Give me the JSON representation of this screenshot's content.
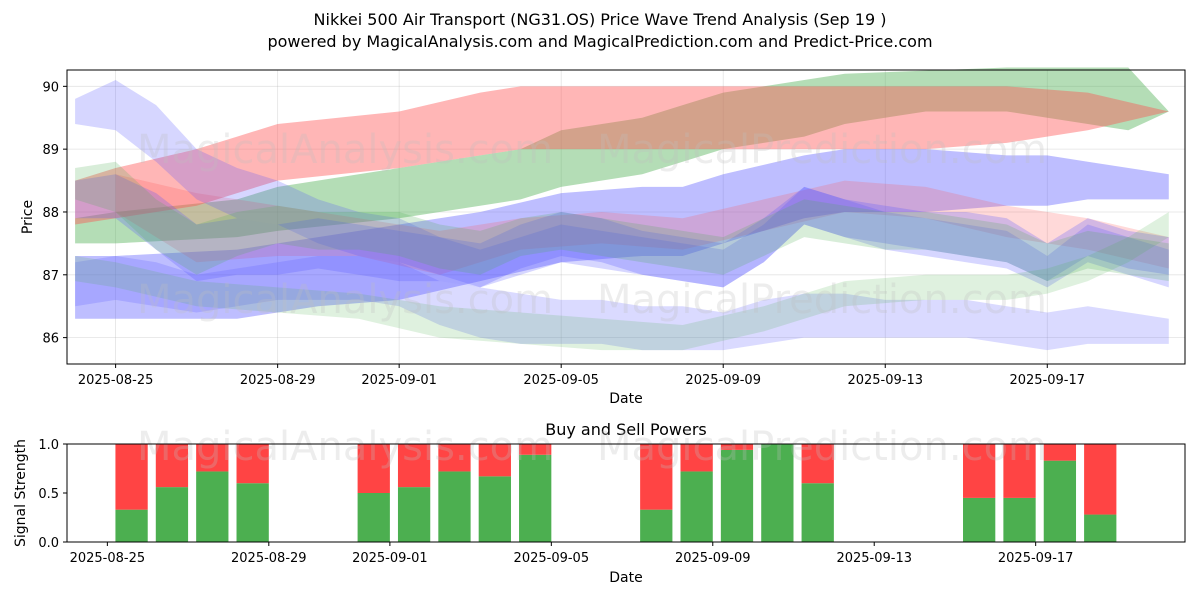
{
  "chart_title_line1": "Nikkei 500 Air Transport (NG31.OS) Price Wave Trend Analysis (Sep 19 )",
  "chart_title_line2": "powered by MagicalAnalysis.com and MagicalPrediction.com and Predict-Price.com",
  "watermarks": [
    "MagicalAnalysis.com",
    "MagicalPrediction.com"
  ],
  "colors": {
    "green": "#4caf50",
    "red": "#ff4444",
    "blue": "#5555ff",
    "band_green": "#2ca02c",
    "band_red": "#ff5050"
  },
  "chart_data": [
    {
      "type": "area",
      "title": "",
      "xlabel": "Date",
      "ylabel": "Price",
      "ylim": [
        85.58,
        90.26
      ],
      "xlim": [
        -1.2,
        26.4
      ],
      "x_ticks": [
        {
          "x": 0,
          "label": "2025-08-25"
        },
        {
          "x": 4,
          "label": "2025-08-29"
        },
        {
          "x": 7,
          "label": "2025-09-01"
        },
        {
          "x": 11,
          "label": "2025-09-05"
        },
        {
          "x": 15,
          "label": "2025-09-09"
        },
        {
          "x": 19,
          "label": "2025-09-13"
        },
        {
          "x": 23,
          "label": "2025-09-17"
        }
      ],
      "y_ticks": [
        86,
        87,
        88,
        89,
        90
      ],
      "grid": true,
      "series": [
        {
          "name": "green-upper",
          "color": "green",
          "opacity": 0.42,
          "x": [
            -1,
            0,
            3,
            4,
            7,
            9,
            10,
            11,
            13,
            14,
            15,
            17,
            18,
            20,
            22,
            23,
            24,
            25,
            26
          ],
          "upper": [
            87.9,
            88.0,
            88.2,
            88.4,
            88.7,
            88.9,
            89.0,
            89.3,
            89.5,
            89.7,
            89.9,
            90.1,
            90.2,
            90.25,
            90.3,
            90.3,
            90.3,
            90.3,
            89.6
          ],
          "lower": [
            87.5,
            87.5,
            87.6,
            87.7,
            87.9,
            88.1,
            88.2,
            88.4,
            88.6,
            88.8,
            89.0,
            89.2,
            89.4,
            89.6,
            89.6,
            89.5,
            89.4,
            89.3,
            89.6
          ]
        },
        {
          "name": "red-upper",
          "color": "band_red",
          "opacity": 0.42,
          "x": [
            -1,
            0,
            2,
            3,
            4,
            7,
            9,
            10,
            11,
            14,
            16,
            18,
            20,
            22,
            24,
            26
          ],
          "upper": [
            88.5,
            88.7,
            89.0,
            89.2,
            89.4,
            89.6,
            89.9,
            90.0,
            90.0,
            90.0,
            90.0,
            90.0,
            90.0,
            90.0,
            89.9,
            89.6
          ],
          "lower": [
            87.8,
            87.9,
            88.1,
            88.3,
            88.5,
            88.7,
            88.9,
            89.0,
            89.0,
            89.0,
            89.0,
            89.0,
            89.0,
            89.1,
            89.3,
            89.6
          ]
        },
        {
          "name": "blue-upper",
          "color": "blue",
          "opacity": 0.38,
          "x": [
            -1,
            0,
            3,
            5,
            7,
            9,
            11,
            13,
            14,
            15,
            17,
            18,
            20,
            22,
            23,
            24,
            26
          ],
          "upper": [
            87.3,
            87.3,
            87.4,
            87.6,
            87.8,
            88.0,
            88.3,
            88.4,
            88.4,
            88.6,
            88.9,
            89.0,
            89.0,
            88.9,
            88.9,
            88.8,
            88.6
          ],
          "lower": [
            86.3,
            86.3,
            86.3,
            86.5,
            86.6,
            86.9,
            87.2,
            87.3,
            87.3,
            87.5,
            87.9,
            88.0,
            88.0,
            88.1,
            88.1,
            88.2,
            88.2
          ]
        },
        {
          "name": "magenta-mid",
          "color": "band_red",
          "opacity": 0.22,
          "x": [
            0,
            2,
            4,
            6,
            8,
            10,
            12,
            14,
            16,
            18,
            20,
            22,
            24,
            26
          ],
          "upper": [
            88.6,
            88.3,
            88.1,
            87.9,
            87.7,
            87.9,
            88.0,
            87.9,
            88.2,
            88.5,
            88.4,
            88.1,
            87.9,
            87.6
          ],
          "lower": [
            88.0,
            87.2,
            87.3,
            87.3,
            87.0,
            87.4,
            87.5,
            87.4,
            87.7,
            88.0,
            87.9,
            87.6,
            87.4,
            87.1
          ]
        },
        {
          "name": "blue-wave-a",
          "color": "blue",
          "opacity": 0.26,
          "x": [
            -1,
            0,
            1,
            2,
            3,
            4,
            5,
            6,
            7,
            8,
            9,
            10,
            11,
            12,
            13,
            14,
            15,
            16,
            17,
            18,
            19,
            20,
            21,
            22,
            23,
            24,
            25,
            26
          ],
          "upper": [
            88.5,
            88.6,
            88.3,
            87.8,
            87.9,
            87.8,
            87.9,
            87.8,
            87.7,
            87.6,
            87.5,
            87.8,
            88.0,
            87.9,
            87.7,
            87.6,
            87.5,
            87.9,
            88.4,
            88.2,
            88.1,
            88.0,
            88.0,
            87.9,
            87.5,
            87.9,
            87.7,
            87.6
          ],
          "lower": [
            87.9,
            87.9,
            87.4,
            86.9,
            87.0,
            87.0,
            87.1,
            87.0,
            86.9,
            86.9,
            86.8,
            87.1,
            87.3,
            87.2,
            87.0,
            86.9,
            86.8,
            87.2,
            87.8,
            87.6,
            87.5,
            87.4,
            87.3,
            87.2,
            86.9,
            87.3,
            87.1,
            87.0
          ]
        },
        {
          "name": "blue-wave-b",
          "color": "blue",
          "opacity": 0.24,
          "x": [
            -1,
            0,
            1,
            2,
            3,
            4,
            5,
            6,
            7,
            8,
            9,
            10,
            11,
            12,
            13,
            14,
            15,
            16,
            17,
            18,
            19,
            20,
            21,
            22,
            23,
            24,
            25,
            26
          ],
          "upper": [
            89.8,
            90.1,
            89.7,
            89.0,
            88.7,
            88.5,
            88.2,
            88.0,
            87.9,
            87.6,
            87.4,
            87.6,
            87.8,
            87.7,
            87.6,
            87.5,
            87.4,
            87.8,
            88.4,
            88.2,
            88.0,
            87.9,
            87.8,
            87.7,
            87.3,
            87.8,
            87.6,
            87.4
          ],
          "lower": [
            89.4,
            89.3,
            88.8,
            88.2,
            87.9,
            87.8,
            87.5,
            87.3,
            87.2,
            87.0,
            86.8,
            87.0,
            87.2,
            87.1,
            87.0,
            86.9,
            86.8,
            87.2,
            87.8,
            87.6,
            87.4,
            87.3,
            87.2,
            87.1,
            86.8,
            87.2,
            87.0,
            86.8
          ]
        },
        {
          "name": "teal-wave",
          "color": "green",
          "opacity": 0.22,
          "x": [
            -1,
            0,
            1,
            2,
            3,
            4,
            5,
            6,
            7,
            8,
            9,
            10,
            11,
            12,
            13,
            14,
            15,
            16,
            17,
            18,
            19,
            20,
            21,
            22,
            23,
            24,
            25,
            26
          ],
          "upper": [
            88.7,
            88.8,
            88.2,
            87.8,
            88.0,
            88.1,
            88.0,
            88.0,
            88.0,
            87.8,
            87.7,
            87.9,
            88.0,
            87.9,
            87.8,
            87.7,
            87.6,
            87.9,
            88.2,
            88.1,
            88.0,
            88.0,
            87.9,
            87.8,
            87.5,
            87.7,
            87.6,
            87.5
          ],
          "lower": [
            88.2,
            88.0,
            87.4,
            87.0,
            87.3,
            87.5,
            87.4,
            87.4,
            87.3,
            87.1,
            87.0,
            87.3,
            87.4,
            87.3,
            87.2,
            87.1,
            87.0,
            87.3,
            87.6,
            87.5,
            87.4,
            87.4,
            87.3,
            87.2,
            86.9,
            87.1,
            87.0,
            86.9
          ]
        },
        {
          "name": "blue-lower-a",
          "color": "blue",
          "opacity": 0.22,
          "x": [
            -1,
            0,
            1,
            2,
            3,
            4,
            5,
            6,
            7,
            8,
            9,
            10,
            11,
            12,
            13,
            14,
            15,
            16,
            17,
            18,
            19,
            20,
            21,
            22,
            23,
            24,
            25,
            26
          ],
          "upper": [
            87.2,
            87.3,
            87.2,
            87.0,
            87.1,
            87.2,
            87.3,
            87.3,
            87.2,
            86.9,
            86.8,
            86.7,
            86.6,
            86.6,
            86.5,
            86.5,
            86.4,
            86.6,
            86.7,
            86.7,
            86.6,
            86.6,
            86.6,
            86.5,
            86.4,
            86.5,
            86.4,
            86.3
          ],
          "lower": [
            86.5,
            86.6,
            86.5,
            86.4,
            86.5,
            86.6,
            86.6,
            86.6,
            86.5,
            86.2,
            86.0,
            85.9,
            85.9,
            85.9,
            85.8,
            85.8,
            85.8,
            85.9,
            86.0,
            86.0,
            86.0,
            86.0,
            86.0,
            85.9,
            85.8,
            85.9,
            85.9,
            85.9
          ]
        },
        {
          "name": "green-lower",
          "color": "green",
          "opacity": 0.18,
          "x": [
            -1,
            0,
            2,
            4,
            6,
            8,
            10,
            12,
            14,
            16,
            17,
            18,
            20,
            22,
            23,
            24,
            25,
            26
          ],
          "upper": [
            87.3,
            87.2,
            86.9,
            86.8,
            86.7,
            86.5,
            86.4,
            86.3,
            86.2,
            86.5,
            86.7,
            86.9,
            87.0,
            87.0,
            87.1,
            87.3,
            87.6,
            88.0
          ],
          "lower": [
            86.9,
            86.8,
            86.5,
            86.4,
            86.3,
            86.0,
            85.9,
            85.8,
            85.8,
            86.1,
            86.3,
            86.5,
            86.6,
            86.6,
            86.7,
            86.9,
            87.2,
            87.6
          ]
        }
      ]
    },
    {
      "type": "bar",
      "title": "Buy and Sell Powers",
      "xlabel": "Date",
      "ylabel": "Signal Strength",
      "ylim": [
        0,
        1.0
      ],
      "xlim": [
        -1.6,
        26.1
      ],
      "y_ticks": [
        0.0,
        0.5,
        1.0
      ],
      "y_tick_labels": [
        "0.0",
        "0.5",
        "1.0"
      ],
      "x_ticks": [
        {
          "x": -0.6,
          "label": "2025-08-25"
        },
        {
          "x": 3.4,
          "label": "2025-08-29"
        },
        {
          "x": 6.4,
          "label": "2025-09-01"
        },
        {
          "x": 10.4,
          "label": "2025-09-05"
        },
        {
          "x": 14.4,
          "label": "2025-09-09"
        },
        {
          "x": 18.4,
          "label": "2025-09-13"
        },
        {
          "x": 22.4,
          "label": "2025-09-17"
        }
      ],
      "bars": [
        {
          "x": 0,
          "buy": 0.33
        },
        {
          "x": 1,
          "buy": 0.56
        },
        {
          "x": 2,
          "buy": 0.72
        },
        {
          "x": 3,
          "buy": 0.6
        },
        {
          "x": 6,
          "buy": 0.5
        },
        {
          "x": 7,
          "buy": 0.56
        },
        {
          "x": 8,
          "buy": 0.72
        },
        {
          "x": 9,
          "buy": 0.67
        },
        {
          "x": 10,
          "buy": 0.89
        },
        {
          "x": 13,
          "buy": 0.33
        },
        {
          "x": 14,
          "buy": 0.72
        },
        {
          "x": 15,
          "buy": 0.94
        },
        {
          "x": 16,
          "buy": 1.0
        },
        {
          "x": 17,
          "buy": 0.6
        },
        {
          "x": 21,
          "buy": 0.45
        },
        {
          "x": 22,
          "buy": 0.45
        },
        {
          "x": 23,
          "buy": 0.83
        },
        {
          "x": 24,
          "buy": 0.28
        }
      ]
    }
  ]
}
